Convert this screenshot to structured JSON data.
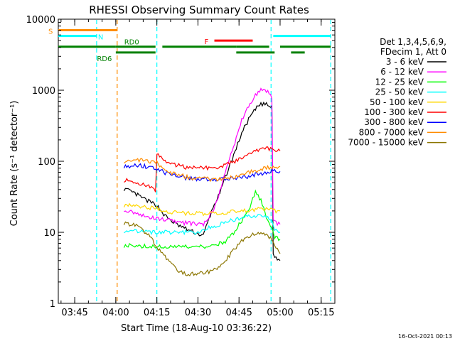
{
  "chart_data": {
    "type": "line",
    "title": "RHESSI Observing Summary Count Rates",
    "xlabel": "Start Time (18-Aug-10 03:36:22)",
    "ylabel": "Count Rate (s⁻¹ detector⁻¹)",
    "yscale": "log",
    "ylim": [
      1,
      10000
    ],
    "xlim_minutes": [
      219,
      320
    ],
    "y_ticks": [
      {
        "value": 1,
        "label": "1"
      },
      {
        "value": 10,
        "label": "10"
      },
      {
        "value": 100,
        "label": "100"
      },
      {
        "value": 1000,
        "label": "1000"
      },
      {
        "value": 10000,
        "label": "10000"
      }
    ],
    "x_ticks": [
      {
        "minute": 225,
        "label": "03:45"
      },
      {
        "minute": 240,
        "label": "04:00"
      },
      {
        "minute": 255,
        "label": "04:15"
      },
      {
        "minute": 270,
        "label": "04:30"
      },
      {
        "minute": 285,
        "label": "04:45"
      },
      {
        "minute": 300,
        "label": "05:00"
      },
      {
        "minute": 315,
        "label": "05:15"
      }
    ],
    "legend": {
      "header": [
        "Det 1,3,4,5,6,9,",
        "FDecim 1, Att 0"
      ],
      "placement": "right"
    },
    "series": [
      {
        "name": "3 - 6 keV",
        "color": "#000000",
        "x": [
          243,
          247,
          250,
          253,
          255,
          258,
          262,
          266,
          270,
          272,
          273,
          276,
          278,
          280,
          283,
          286,
          289,
          292,
          294,
          296,
          297,
          297.5,
          298,
          300
        ],
        "values": [
          41,
          35,
          30,
          26,
          24,
          17,
          13,
          11,
          9.5,
          9,
          12,
          25,
          35,
          60,
          120,
          250,
          420,
          600,
          650,
          600,
          560,
          5,
          4.5,
          4
        ]
      },
      {
        "name": "6 - 12 keV",
        "color": "#ff00ff",
        "x": [
          243,
          247,
          250,
          253,
          255,
          258,
          262,
          266,
          270,
          272,
          273,
          276,
          278,
          280,
          283,
          286,
          289,
          292,
          294,
          296,
          297,
          297.5,
          298,
          300
        ],
        "values": [
          21,
          19,
          17,
          16,
          16,
          15,
          14,
          13.5,
          13,
          13,
          14,
          22,
          38,
          70,
          160,
          380,
          650,
          950,
          1050,
          900,
          800,
          15,
          14,
          13
        ]
      },
      {
        "name": "12 - 25 keV",
        "color": "#00ff00",
        "x": [
          243,
          248,
          253,
          255,
          258,
          262,
          266,
          270,
          274,
          277,
          280,
          283,
          285,
          287,
          289,
          290,
          291,
          293,
          295,
          297,
          298,
          300
        ],
        "values": [
          6.5,
          6.5,
          6.3,
          6.3,
          6.2,
          6.2,
          6.2,
          6.2,
          6.3,
          6.8,
          7.5,
          9.5,
          13,
          16,
          22,
          30,
          38,
          28,
          16,
          12,
          8.5,
          8
        ]
      },
      {
        "name": "25 - 50 keV",
        "color": "#00ffff",
        "x": [
          243,
          248,
          253,
          255,
          258,
          262,
          266,
          270,
          274,
          277,
          280,
          283,
          286,
          289,
          292,
          295,
          297,
          298,
          300
        ],
        "values": [
          10.5,
          10.5,
          10,
          10,
          10,
          10,
          10,
          10,
          11.5,
          12.5,
          14,
          15,
          16,
          17,
          17,
          16,
          15,
          10.5,
          10
        ]
      },
      {
        "name": "50 - 100 keV",
        "color": "#ffd700",
        "x": [
          243,
          248,
          253,
          255,
          258,
          262,
          266,
          270,
          274,
          277,
          280,
          283,
          286,
          289,
          292,
          295,
          297,
          298,
          300
        ],
        "values": [
          24,
          23,
          22,
          22,
          20,
          19,
          18.5,
          18.5,
          18.5,
          18.5,
          19,
          19.5,
          20,
          20.5,
          21,
          21.5,
          21.5,
          20,
          20
        ]
      },
      {
        "name": "100 - 300 keV",
        "color": "#ff0000",
        "x": [
          243,
          247,
          250,
          253,
          254.5,
          255,
          258,
          262,
          266,
          270,
          274,
          277,
          280,
          283,
          286,
          289,
          292,
          295,
          298,
          300
        ],
        "values": [
          54,
          52,
          47,
          42,
          38,
          125,
          100,
          88,
          82,
          80,
          80,
          82,
          88,
          98,
          115,
          135,
          145,
          150,
          145,
          140
        ]
      },
      {
        "name": "300 - 800 keV",
        "color": "#0000ff",
        "x": [
          243,
          248,
          253,
          255,
          258,
          262,
          266,
          270,
          274,
          277,
          280,
          283,
          286,
          289,
          292,
          295,
          298,
          300
        ],
        "values": [
          85,
          88,
          82,
          78,
          68,
          62,
          58,
          56,
          56,
          56,
          56,
          57,
          59,
          62,
          66,
          70,
          74,
          72
        ]
      },
      {
        "name": "800 - 7000 keV",
        "color": "#ff8c00",
        "x": [
          243,
          248,
          253,
          255,
          258,
          262,
          266,
          270,
          274,
          277,
          280,
          283,
          286,
          289,
          292,
          295,
          298,
          300
        ],
        "values": [
          100,
          105,
          100,
          95,
          75,
          65,
          60,
          57,
          56,
          56,
          57,
          60,
          65,
          70,
          75,
          80,
          85,
          85
        ]
      },
      {
        "name": "7000 - 15000 keV",
        "color": "#8b7500",
        "x": [
          243,
          248,
          253,
          255,
          258,
          262,
          266,
          270,
          274,
          277,
          280,
          283,
          286,
          289,
          292,
          295,
          297,
          298,
          300
        ],
        "values": [
          13.5,
          12.5,
          8.5,
          6,
          4.5,
          3,
          2.6,
          2.6,
          2.8,
          3.2,
          4,
          5.5,
          7.5,
          9,
          10,
          9.5,
          8,
          6.5,
          5
        ]
      }
    ],
    "flags": [
      {
        "name": "SAA",
        "label": "S",
        "color": "#ff8c00",
        "y": 7000,
        "segments": [
          [
            219,
            240.5
          ]
        ]
      },
      {
        "name": "Night",
        "label": "N",
        "color": "#00ffff",
        "y": 5800,
        "segments": [
          [
            219,
            233
          ],
          [
            297.5,
            318.5
          ]
        ]
      },
      {
        "name": "Flare",
        "label": "F",
        "color": "#ff0000",
        "y": 5000,
        "segments": [
          [
            276,
            290
          ]
        ]
      },
      {
        "name": "Decimation",
        "label": "RD0",
        "color": "#008000",
        "y": 4100,
        "segments": [
          [
            219,
            240
          ],
          [
            240,
            254.5
          ],
          [
            257,
            284
          ],
          [
            284,
            296
          ],
          [
            300,
            318.5
          ]
        ]
      },
      {
        "name": "Decimation rate 6",
        "label": "RD6",
        "color": "#008000",
        "y": 3400,
        "segments": [
          [
            240,
            254.5
          ],
          [
            284,
            298
          ],
          [
            304,
            309
          ]
        ]
      }
    ],
    "vlines": [
      {
        "minute": 233,
        "color": "#00ffff"
      },
      {
        "minute": 240.5,
        "color": "#ff8c00"
      },
      {
        "minute": 255,
        "color": "#00ffff"
      },
      {
        "minute": 296.7,
        "color": "#00ffff"
      },
      {
        "minute": 318.5,
        "color": "#00ffff"
      }
    ],
    "timestamp": "16-Oct-2021 00:13"
  }
}
